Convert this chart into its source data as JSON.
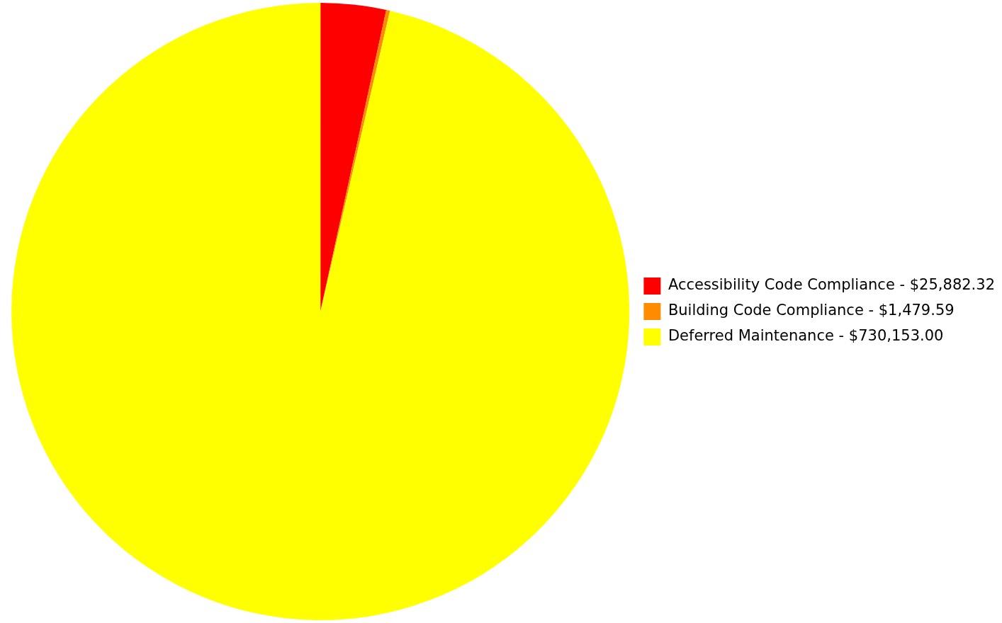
{
  "chart_data": {
    "type": "pie",
    "categories": [
      "Accessibility Code Compliance",
      "Building Code Compliance",
      "Deferred Maintenance"
    ],
    "values": [
      25882.32,
      1479.59,
      730153.0
    ],
    "value_labels": [
      "$25,882.32",
      "$1,479.59",
      "$730,153.00"
    ],
    "colors": [
      "#ff0000",
      "#ff8c00",
      "#ffff00"
    ],
    "legend": "right"
  }
}
